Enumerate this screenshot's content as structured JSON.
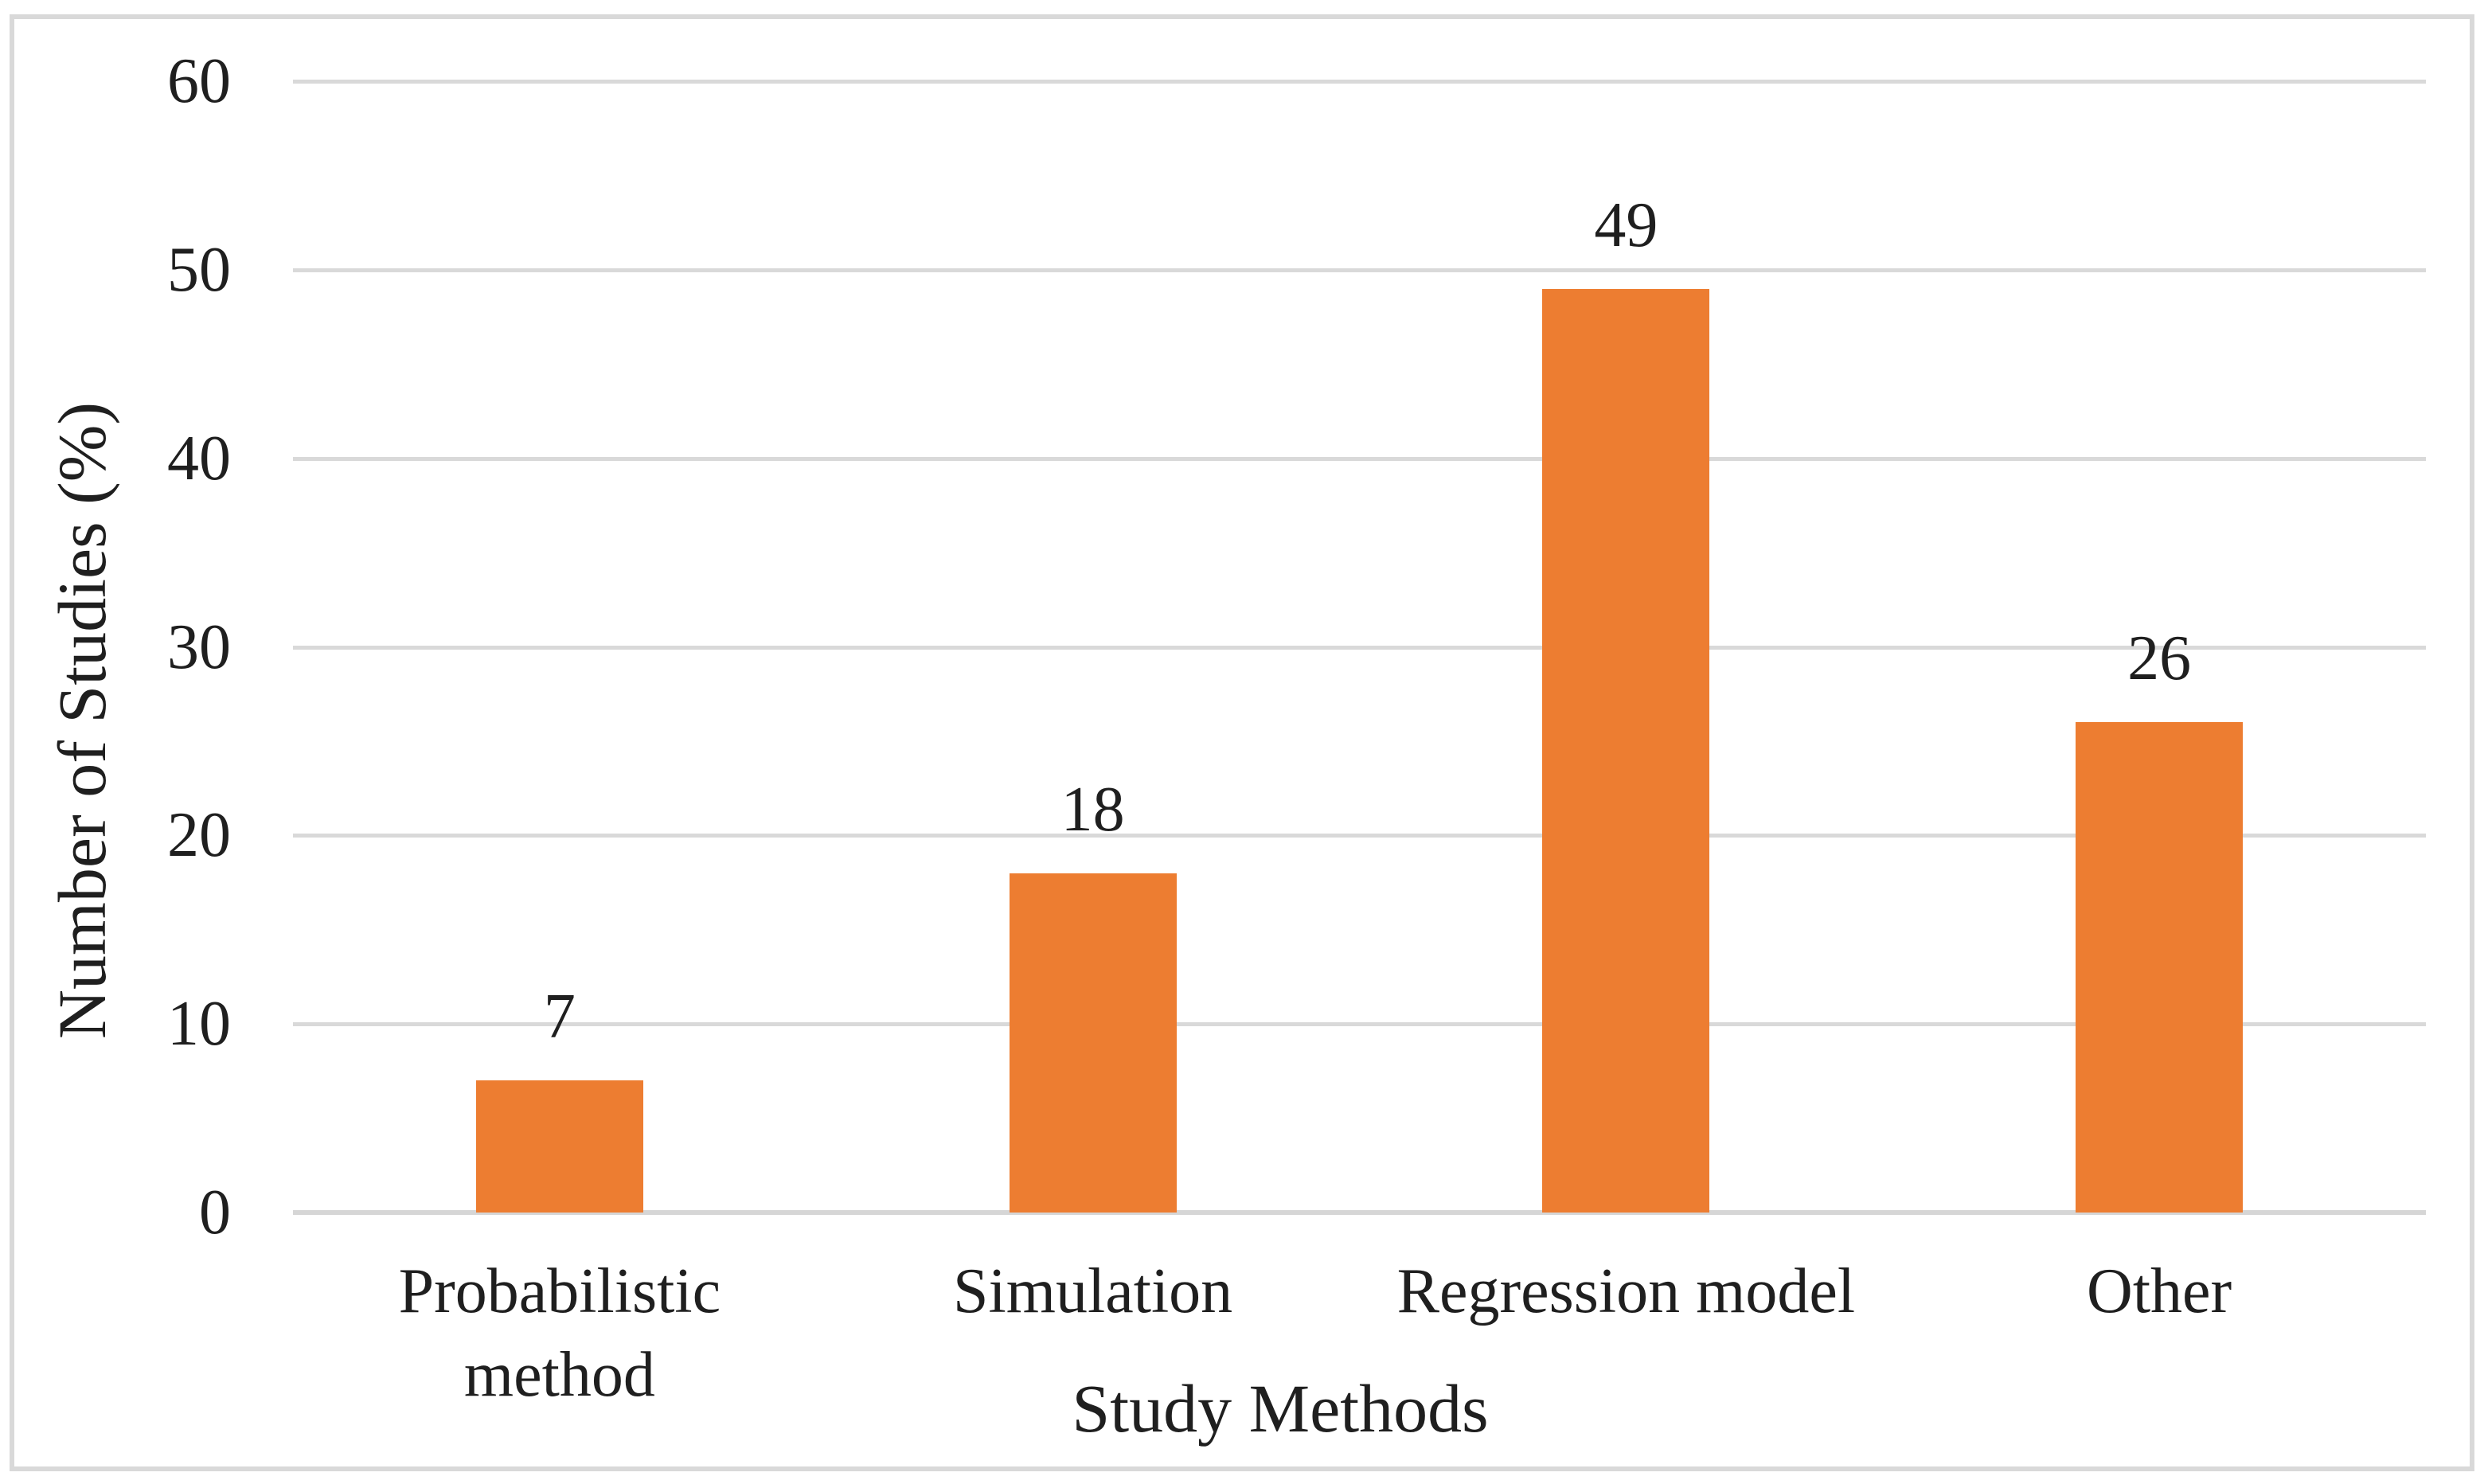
{
  "chart_data": {
    "type": "bar",
    "title": "",
    "xlabel": "Study Methods",
    "ylabel": "Number of Studies (%)",
    "categories": [
      "Probabilistic method",
      "Simulation",
      "Regression model",
      "Other"
    ],
    "category_label_lines": [
      [
        "Probabilistic",
        "method"
      ],
      [
        "Simulation"
      ],
      [
        "Regression model"
      ],
      [
        "Other"
      ]
    ],
    "values": [
      7,
      18,
      49,
      26
    ],
    "data_labels": [
      "7",
      "18",
      "49",
      "26"
    ],
    "ylim": [
      0,
      60
    ],
    "yticks": [
      0,
      10,
      20,
      30,
      40,
      50,
      60
    ],
    "ytick_labels": [
      "0",
      "10",
      "20",
      "30",
      "40",
      "50",
      "60"
    ],
    "grid": "horizontal",
    "legend": "none",
    "bar_color": "#ED7D31",
    "gridline_color": "#D9D9D9",
    "border_color": "#D9D9D9",
    "text_color": "#1F1F1F"
  }
}
